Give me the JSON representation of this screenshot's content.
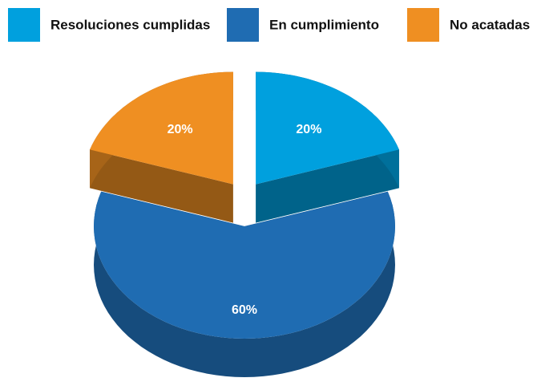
{
  "chart_data": {
    "type": "pie",
    "categories": [
      "Resoluciones cumplidas",
      "En cumplimiento",
      "No acatadas"
    ],
    "values": [
      20,
      60,
      20
    ],
    "value_labels": [
      "20%",
      "60%",
      "20%"
    ],
    "colors": [
      "#00a0de",
      "#1f6cb2",
      "#ef8f22"
    ],
    "legend": "top"
  }
}
